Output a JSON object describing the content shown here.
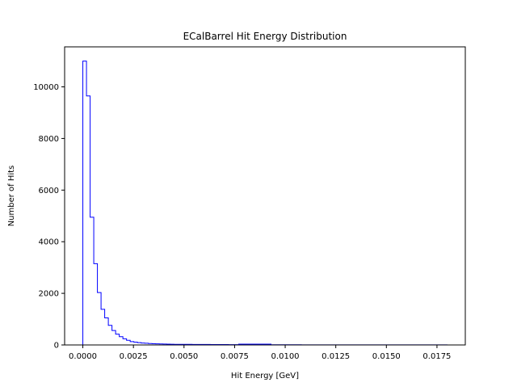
{
  "chart_data": {
    "type": "histogram",
    "title": "ECalBarrel Hit Energy Distribution",
    "xlabel": "Hit Energy [GeV]",
    "ylabel": "Number of Hits",
    "xlim": [
      -0.0009,
      0.0189
    ],
    "ylim": [
      0,
      11550
    ],
    "grid": false,
    "line_color": "#0000ff",
    "x_ticks": [
      {
        "value": 0.0,
        "label": "0.0000"
      },
      {
        "value": 0.0025,
        "label": "0.0025"
      },
      {
        "value": 0.005,
        "label": "0.0050"
      },
      {
        "value": 0.0075,
        "label": "0.0075"
      },
      {
        "value": 0.01,
        "label": "0.0100"
      },
      {
        "value": 0.0125,
        "label": "0.0125"
      },
      {
        "value": 0.015,
        "label": "0.0150"
      },
      {
        "value": 0.0175,
        "label": "0.0175"
      }
    ],
    "y_ticks": [
      {
        "value": 0,
        "label": "0"
      },
      {
        "value": 2000,
        "label": "2000"
      },
      {
        "value": 4000,
        "label": "4000"
      },
      {
        "value": 6000,
        "label": "6000"
      },
      {
        "value": 8000,
        "label": "8000"
      },
      {
        "value": 10000,
        "label": "10000"
      }
    ],
    "bin_edges": [
      0.0,
      0.00018,
      0.00036,
      0.00054,
      0.00072,
      0.0009,
      0.00108,
      0.00126,
      0.00144,
      0.00162,
      0.0018,
      0.00198,
      0.00216,
      0.00234,
      0.00252,
      0.0027,
      0.00288,
      0.00306,
      0.00324,
      0.00342,
      0.0036,
      0.00378,
      0.00396,
      0.00414,
      0.00432,
      0.0045,
      0.0054,
      0.0063,
      0.0072,
      0.0077,
      0.0093,
      0.0099,
      0.0108,
      0.0126,
      0.0144,
      0.0162,
      0.018
    ],
    "counts": [
      11000,
      9650,
      4950,
      3150,
      2030,
      1380,
      1050,
      760,
      560,
      420,
      320,
      240,
      180,
      130,
      110,
      90,
      75,
      65,
      55,
      48,
      42,
      38,
      34,
      30,
      27,
      24,
      20,
      16,
      12,
      30,
      8,
      6,
      5,
      4,
      3,
      3
    ]
  }
}
